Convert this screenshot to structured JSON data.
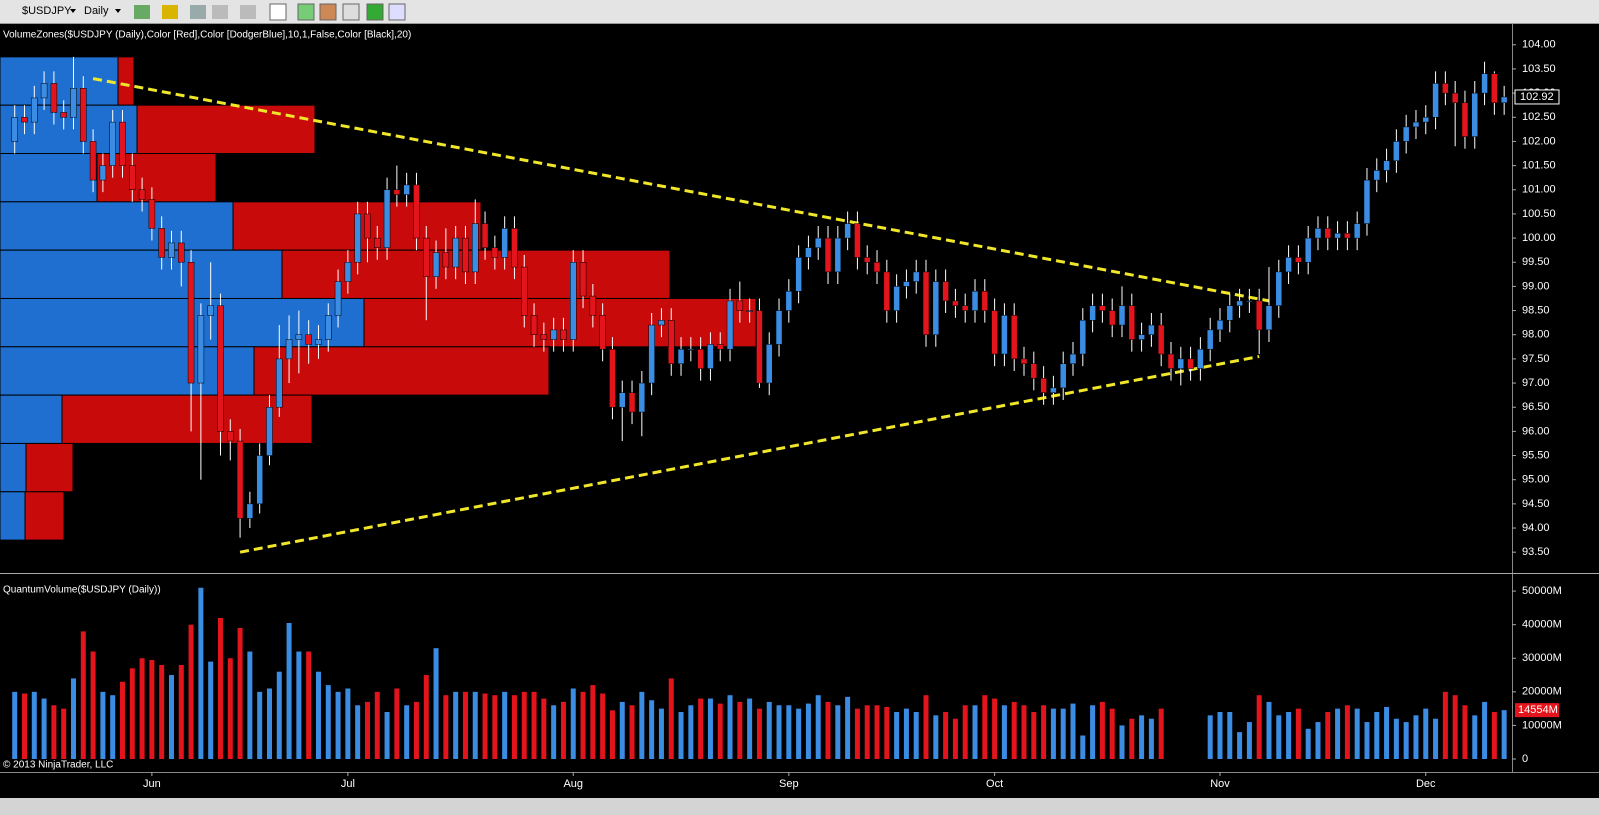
{
  "toolbar": {
    "symbol": "$USDJPY",
    "interval": "Daily"
  },
  "chart_data": {
    "type": "candlestick",
    "indicator_label": "VolumeZones($USDJPY (Daily),Color [Red],Color [DodgerBlue],10,1,False,Color [Black],20)",
    "copyright": "© 2013 NinjaTrader, LLC",
    "up_color": "#3b8de4",
    "down_color": "#e3141b",
    "background": "#000000",
    "trendline_color": "#f0e62a",
    "categories": [
      null,
      null,
      null,
      null,
      null,
      null,
      null,
      null,
      null,
      null,
      null,
      null,
      null,
      null,
      "Jun",
      null,
      null,
      null,
      null,
      null,
      null,
      null,
      null,
      null,
      null,
      null,
      null,
      null,
      null,
      null,
      null,
      null,
      null,
      null,
      "Jul",
      null,
      null,
      null,
      null,
      null,
      null,
      null,
      null,
      null,
      null,
      null,
      null,
      null,
      null,
      null,
      null,
      null,
      null,
      null,
      null,
      null,
      null,
      "Aug",
      null,
      null,
      null,
      null,
      null,
      null,
      null,
      null,
      null,
      null,
      null,
      null,
      null,
      null,
      null,
      null,
      null,
      null,
      null,
      null,
      null,
      "Sep",
      null,
      null,
      null,
      null,
      null,
      null,
      null,
      null,
      null,
      null,
      null,
      null,
      null,
      null,
      null,
      null,
      null,
      null,
      null,
      null,
      "Oct",
      null,
      null,
      null,
      null,
      null,
      null,
      null,
      null,
      null,
      null,
      null,
      null,
      null,
      null,
      null,
      null,
      null,
      null,
      null,
      null,
      null,
      null,
      "Nov",
      null,
      null,
      null,
      null,
      null,
      null,
      null,
      null,
      null,
      null,
      null,
      null,
      null,
      null,
      null,
      null,
      null,
      null,
      null,
      null,
      "Dec",
      null,
      null,
      null,
      null,
      null,
      null,
      null,
      null
    ],
    "xlim": [
      -1.5,
      152.8
    ],
    "open": [
      102.0,
      102.5,
      102.4,
      102.9,
      103.2,
      102.6,
      102.5,
      103.1,
      102.0,
      101.2,
      101.5,
      102.4,
      101.5,
      101.0,
      100.8,
      100.2,
      99.6,
      99.9,
      99.5,
      97.0,
      98.4,
      98.6,
      96.0,
      95.8,
      94.2,
      94.5,
      95.5,
      96.5,
      97.5,
      97.9,
      98.0,
      97.8,
      97.9,
      98.4,
      99.1,
      99.5,
      100.5,
      100.0,
      99.8,
      101.0,
      100.9,
      101.1,
      100.0,
      99.2,
      99.7,
      99.4,
      100.0,
      99.3,
      100.3,
      99.8,
      99.6,
      100.2,
      99.4,
      98.4,
      98.0,
      97.9,
      98.1,
      97.9,
      99.5,
      98.8,
      98.4,
      97.7,
      96.5,
      96.8,
      96.4,
      97.0,
      98.2,
      98.3,
      97.4,
      97.7,
      97.7,
      97.3,
      97.8,
      97.7,
      98.7,
      98.5,
      98.5,
      97.0,
      97.8,
      98.5,
      98.9,
      99.6,
      99.8,
      100.0,
      99.3,
      100.0,
      100.3,
      99.6,
      99.5,
      99.3,
      98.5,
      99.0,
      99.1,
      99.3,
      98.0,
      99.1,
      98.7,
      98.6,
      98.5,
      98.9,
      98.5,
      97.6,
      98.4,
      97.5,
      97.4,
      97.1,
      96.8,
      96.9,
      97.4,
      97.6,
      98.3,
      98.6,
      98.5,
      98.2,
      98.6,
      97.9,
      98.0,
      98.2,
      97.6,
      97.3,
      97.5,
      97.3,
      97.7,
      98.1,
      98.3,
      98.6,
      98.7,
      98.7,
      98.1,
      98.6,
      99.3,
      99.6,
      99.5,
      100.0,
      100.2,
      100.0,
      100.1,
      100.0,
      100.3,
      101.2,
      101.4,
      101.6,
      102.0,
      102.3,
      102.4,
      102.5,
      103.2,
      103.0,
      102.8,
      102.1,
      103.0,
      103.4,
      102.8
    ],
    "high": [
      102.75,
      102.75,
      103.15,
      103.45,
      103.45,
      102.85,
      103.75,
      103.35,
      102.25,
      101.75,
      102.65,
      102.65,
      101.75,
      101.25,
      101.05,
      100.45,
      100.15,
      100.15,
      99.75,
      98.65,
      99.5,
      98.85,
      96.25,
      96.05,
      94.75,
      95.75,
      96.75,
      98.2,
      98.4,
      98.5,
      98.3,
      98.2,
      98.65,
      99.35,
      99.75,
      100.75,
      100.75,
      100.25,
      101.25,
      101.5,
      101.35,
      101.35,
      100.25,
      99.95,
      100.2,
      100.25,
      100.25,
      100.8,
      100.55,
      100.05,
      100.45,
      100.45,
      99.65,
      98.65,
      98.25,
      98.35,
      98.35,
      99.75,
      99.75,
      99.05,
      98.65,
      97.95,
      97.05,
      97.05,
      97.25,
      98.45,
      98.55,
      98.55,
      97.95,
      97.95,
      97.95,
      98.05,
      98.05,
      98.95,
      99.1,
      98.75,
      98.75,
      98.05,
      98.75,
      99.15,
      99.85,
      100.05,
      100.25,
      100.25,
      100.25,
      100.55,
      100.55,
      99.85,
      99.75,
      99.55,
      99.25,
      99.35,
      99.55,
      99.55,
      99.35,
      99.35,
      98.95,
      98.85,
      99.15,
      99.15,
      98.75,
      98.65,
      98.65,
      97.75,
      97.65,
      97.35,
      97.15,
      97.65,
      97.85,
      98.55,
      98.85,
      98.85,
      98.75,
      99.0,
      98.85,
      98.25,
      98.45,
      98.45,
      97.85,
      97.75,
      97.75,
      97.95,
      98.35,
      98.55,
      98.85,
      98.95,
      98.95,
      98.95,
      99.4,
      99.55,
      99.85,
      99.85,
      100.25,
      100.45,
      100.45,
      100.35,
      100.35,
      100.55,
      101.45,
      101.65,
      101.85,
      102.25,
      102.55,
      102.65,
      102.75,
      103.45,
      103.45,
      103.25,
      103.05,
      103.25,
      103.65,
      103.45,
      103.15
    ],
    "low": [
      101.75,
      102.15,
      102.15,
      102.65,
      102.35,
      102.25,
      102.25,
      101.75,
      100.95,
      100.95,
      101.25,
      101.25,
      100.75,
      100.55,
      99.95,
      99.35,
      99.35,
      99.0,
      96.0,
      95.0,
      97.9,
      95.5,
      95.4,
      93.8,
      94.0,
      94.3,
      95.3,
      96.3,
      97.0,
      97.2,
      97.4,
      97.5,
      97.65,
      98.15,
      98.85,
      99.25,
      99.5,
      99.55,
      99.55,
      100.65,
      100.65,
      99.75,
      98.3,
      98.95,
      99.15,
      99.15,
      99.05,
      99.05,
      99.55,
      99.35,
      99.35,
      99.15,
      98.15,
      97.75,
      97.65,
      97.65,
      97.65,
      97.65,
      98.55,
      98.15,
      97.45,
      96.25,
      95.8,
      96.15,
      95.9,
      96.75,
      97.95,
      97.15,
      97.15,
      97.45,
      97.05,
      97.05,
      97.45,
      97.45,
      98.25,
      98.25,
      96.9,
      96.75,
      97.55,
      98.25,
      98.65,
      99.35,
      99.55,
      99.05,
      99.05,
      99.75,
      99.35,
      99.25,
      99.05,
      98.25,
      98.25,
      98.75,
      98.85,
      97.75,
      97.75,
      98.45,
      98.35,
      98.25,
      98.25,
      98.25,
      97.35,
      97.35,
      97.25,
      97.15,
      96.85,
      96.55,
      96.55,
      96.65,
      97.15,
      97.35,
      98.05,
      98.25,
      97.95,
      97.95,
      97.65,
      97.65,
      97.75,
      97.35,
      97.05,
      96.95,
      97.05,
      97.05,
      97.45,
      97.85,
      98.05,
      98.35,
      98.45,
      97.6,
      97.85,
      98.35,
      99.05,
      99.25,
      99.25,
      99.75,
      99.75,
      99.75,
      99.75,
      99.75,
      100.05,
      100.95,
      101.15,
      101.35,
      101.75,
      102.05,
      102.15,
      102.25,
      102.75,
      101.9,
      101.85,
      101.85,
      102.75,
      102.55,
      102.55
    ],
    "close": [
      102.5,
      102.4,
      102.9,
      103.2,
      102.6,
      102.5,
      103.1,
      102.0,
      101.2,
      101.5,
      102.4,
      101.5,
      101.0,
      100.8,
      100.2,
      99.6,
      99.9,
      99.5,
      97.0,
      98.4,
      98.6,
      96.0,
      95.8,
      94.2,
      94.5,
      95.5,
      96.5,
      97.5,
      97.9,
      98.0,
      97.8,
      97.9,
      98.4,
      99.1,
      99.5,
      100.5,
      100.0,
      99.8,
      101.0,
      100.9,
      101.1,
      100.0,
      99.2,
      99.7,
      99.4,
      100.0,
      99.3,
      100.3,
      99.8,
      99.6,
      100.2,
      99.4,
      98.4,
      98.0,
      97.9,
      98.1,
      97.9,
      99.5,
      98.8,
      98.4,
      97.7,
      96.5,
      96.8,
      96.4,
      97.0,
      98.2,
      98.3,
      97.4,
      97.7,
      97.7,
      97.3,
      97.8,
      97.7,
      98.7,
      98.5,
      98.5,
      97.0,
      97.8,
      98.5,
      98.9,
      99.6,
      99.8,
      100.0,
      99.3,
      100.0,
      100.3,
      99.6,
      99.5,
      99.3,
      98.5,
      99.0,
      99.1,
      99.3,
      98.0,
      99.1,
      98.7,
      98.6,
      98.5,
      98.9,
      98.5,
      97.6,
      98.4,
      97.5,
      97.4,
      97.1,
      96.8,
      96.9,
      97.4,
      97.6,
      98.3,
      98.6,
      98.5,
      98.2,
      98.6,
      97.9,
      98.0,
      98.2,
      97.6,
      97.3,
      97.5,
      97.3,
      97.7,
      98.1,
      98.3,
      98.6,
      98.7,
      98.7,
      98.1,
      98.6,
      99.3,
      99.6,
      99.5,
      100.0,
      100.2,
      100.0,
      100.1,
      100.0,
      100.3,
      101.2,
      101.4,
      101.6,
      102.0,
      102.3,
      102.4,
      102.5,
      103.2,
      103.0,
      102.8,
      102.1,
      103.0,
      103.4,
      102.8,
      102.92
    ],
    "last_price_label": "102.92",
    "ylim": [
      93.09,
      104.43
    ],
    "yticks": [
      {
        "value": 93.5,
        "label": "93.50"
      },
      {
        "value": 94,
        "label": "94.00"
      },
      {
        "value": 94.5,
        "label": "94.50"
      },
      {
        "value": 95,
        "label": "95.00"
      },
      {
        "value": 95.5,
        "label": "95.50"
      },
      {
        "value": 96,
        "label": "96.00"
      },
      {
        "value": 96.5,
        "label": "96.50"
      },
      {
        "value": 97,
        "label": "97.00"
      },
      {
        "value": 97.5,
        "label": "97.50"
      },
      {
        "value": 98,
        "label": "98.00"
      },
      {
        "value": 98.5,
        "label": "98.50"
      },
      {
        "value": 99,
        "label": "99.00"
      },
      {
        "value": 99.5,
        "label": "99.50"
      },
      {
        "value": 100,
        "label": "100.00"
      },
      {
        "value": 100.5,
        "label": "100.50"
      },
      {
        "value": 101,
        "label": "101.00"
      },
      {
        "value": 101.5,
        "label": "101.50"
      },
      {
        "value": 102,
        "label": "102.00"
      },
      {
        "value": 102.5,
        "label": "102.50"
      },
      {
        "value": 103,
        "label": "103.00"
      },
      {
        "value": 103.5,
        "label": "103.50"
      },
      {
        "value": 104,
        "label": "104.00"
      }
    ],
    "volume_zones": {
      "up_color": "#1f6fd1",
      "down_color": "#c80a0a",
      "price_edges": [
        103.75,
        102.75,
        101.75,
        100.75,
        99.75,
        98.75,
        97.75,
        96.75,
        95.75,
        94.75,
        93.75
      ],
      "up": [
        118,
        137,
        97,
        233,
        282,
        364,
        254,
        62,
        26,
        25
      ],
      "down": [
        16,
        178,
        119,
        248,
        388,
        392,
        295,
        250,
        47,
        39
      ]
    },
    "trendlines": [
      {
        "from": {
          "index": 8,
          "price": 103.3
        },
        "to": {
          "index": 128,
          "price": 98.7
        }
      },
      {
        "from": {
          "index": 23,
          "price": 93.5
        },
        "to": {
          "index": 127,
          "price": 97.55
        }
      }
    ],
    "volume": {
      "title": "QuantumVolume($USDJPY (Daily))",
      "values": [
        20000,
        19500,
        20000,
        18000,
        16000,
        15000,
        24000,
        38000,
        32000,
        20000,
        19000,
        23000,
        27000,
        30000,
        29500,
        28000,
        25000,
        28000,
        40000,
        51000,
        29000,
        42000,
        30000,
        39000,
        32000,
        20000,
        21000,
        26000,
        40500,
        32000,
        32000,
        26000,
        22000,
        20000,
        21000,
        16000,
        17000,
        20000,
        14000,
        21000,
        16000,
        17000,
        25000,
        33000,
        19000,
        20000,
        20000,
        20000,
        19500,
        19000,
        20000,
        19000,
        20000,
        20000,
        18000,
        16000,
        17000,
        21000,
        20000,
        22000,
        19500,
        14500,
        17000,
        16000,
        20000,
        17500,
        15000,
        24000,
        14000,
        16000,
        18000,
        18000,
        16500,
        19000,
        17000,
        18000,
        15000,
        17000,
        16000,
        16000,
        15000,
        16500,
        19000,
        17000,
        16000,
        18500,
        15000,
        16000,
        16000,
        15500,
        14000,
        15000,
        14000,
        19000,
        13000,
        14000,
        12000,
        16000,
        16000,
        19000,
        18000,
        16000,
        17000,
        16000,
        14000,
        16000,
        15000,
        15000,
        16500,
        7000,
        16000,
        17000,
        15000,
        10000,
        12000,
        13000,
        12000,
        15000,
        null,
        null,
        null,
        null,
        13000,
        14000,
        14000,
        8000,
        11000,
        19000,
        17000,
        13000,
        14000,
        15000,
        9000,
        11000,
        14000,
        15000,
        16000,
        15000,
        11000,
        14000,
        15500,
        12000,
        11000,
        13000,
        15000,
        12000,
        20000,
        19000,
        16000,
        13000,
        17000,
        14000,
        14554
      ],
      "last_label": "14554M",
      "ylim": [
        -3870,
        53900
      ],
      "yticks": [
        0,
        {
          "value": 10000,
          "label": "10000M"
        },
        {
          "value": 20000,
          "label": "20000M"
        },
        {
          "value": 30000,
          "label": "30000M"
        },
        {
          "value": 40000,
          "label": "40000M"
        },
        {
          "value": 50000,
          "label": "50000M"
        }
      ]
    }
  }
}
